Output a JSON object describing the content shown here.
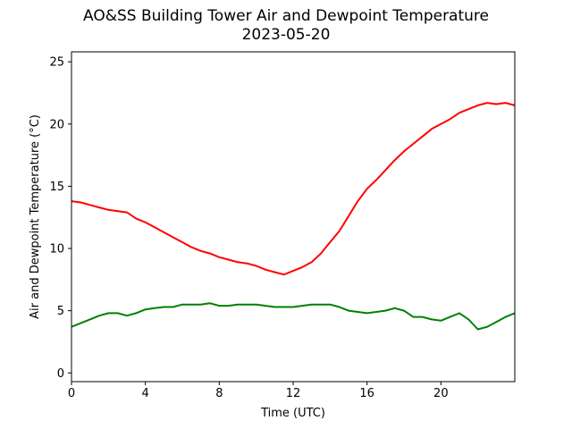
{
  "chart_data": {
    "type": "line",
    "title": "AO&SS Building Tower Air and Dewpoint Temperature",
    "subtitle": "2023-05-20",
    "xlabel": "Time (UTC)",
    "ylabel": "Air and Dewpoint Temperature (°C)",
    "xlim": [
      0,
      24
    ],
    "ylim": [
      -0.7,
      25.8
    ],
    "x_ticks": [
      0,
      4,
      8,
      12,
      16,
      20
    ],
    "y_ticks": [
      0,
      5,
      10,
      15,
      20,
      25
    ],
    "grid": false,
    "series": [
      {
        "color": "#ff0000",
        "x": [
          0,
          0.5,
          1,
          1.5,
          2,
          2.5,
          3,
          3.5,
          4,
          4.5,
          5,
          5.5,
          6,
          6.5,
          7,
          7.5,
          8,
          8.5,
          9,
          9.5,
          10,
          10.5,
          11,
          11.5,
          12,
          12.5,
          13,
          13.5,
          14,
          14.5,
          15,
          15.5,
          16,
          16.5,
          17,
          17.5,
          18,
          18.5,
          19,
          19.5,
          20,
          20.5,
          21,
          21.5,
          22,
          22.5,
          23,
          23.5,
          24
        ],
        "values": [
          13.8,
          13.7,
          13.5,
          13.3,
          13.1,
          13.0,
          12.9,
          12.4,
          12.1,
          11.7,
          11.3,
          10.9,
          10.5,
          10.1,
          9.8,
          9.6,
          9.3,
          9.1,
          8.9,
          8.8,
          8.6,
          8.3,
          8.1,
          7.9,
          8.2,
          8.5,
          8.9,
          9.6,
          10.5,
          11.4,
          12.6,
          13.8,
          14.8,
          15.5,
          16.3,
          17.1,
          17.8,
          18.4,
          19.0,
          19.6,
          20.0,
          20.4,
          20.9,
          21.2,
          21.5,
          21.7,
          21.6,
          21.7,
          21.5
        ]
      },
      {
        "color": "#008000",
        "x": [
          0,
          0.5,
          1,
          1.5,
          2,
          2.5,
          3,
          3.5,
          4,
          4.5,
          5,
          5.5,
          6,
          6.5,
          7,
          7.5,
          8,
          8.5,
          9,
          9.5,
          10,
          10.5,
          11,
          11.5,
          12,
          12.5,
          13,
          13.5,
          14,
          14.5,
          15,
          15.5,
          16,
          16.5,
          17,
          17.5,
          18,
          18.5,
          19,
          19.5,
          20,
          20.5,
          21,
          21.5,
          22,
          22.5,
          23,
          23.5,
          24
        ],
        "values": [
          3.7,
          4.0,
          4.3,
          4.6,
          4.8,
          4.8,
          4.6,
          4.8,
          5.1,
          5.2,
          5.3,
          5.3,
          5.5,
          5.5,
          5.5,
          5.6,
          5.4,
          5.4,
          5.5,
          5.5,
          5.5,
          5.4,
          5.3,
          5.3,
          5.3,
          5.4,
          5.5,
          5.5,
          5.5,
          5.3,
          5.0,
          4.9,
          4.8,
          4.9,
          5.0,
          5.2,
          5.0,
          4.5,
          4.5,
          4.3,
          4.2,
          4.5,
          4.8,
          4.3,
          3.5,
          3.7,
          4.1,
          4.5,
          4.8
        ]
      }
    ]
  }
}
